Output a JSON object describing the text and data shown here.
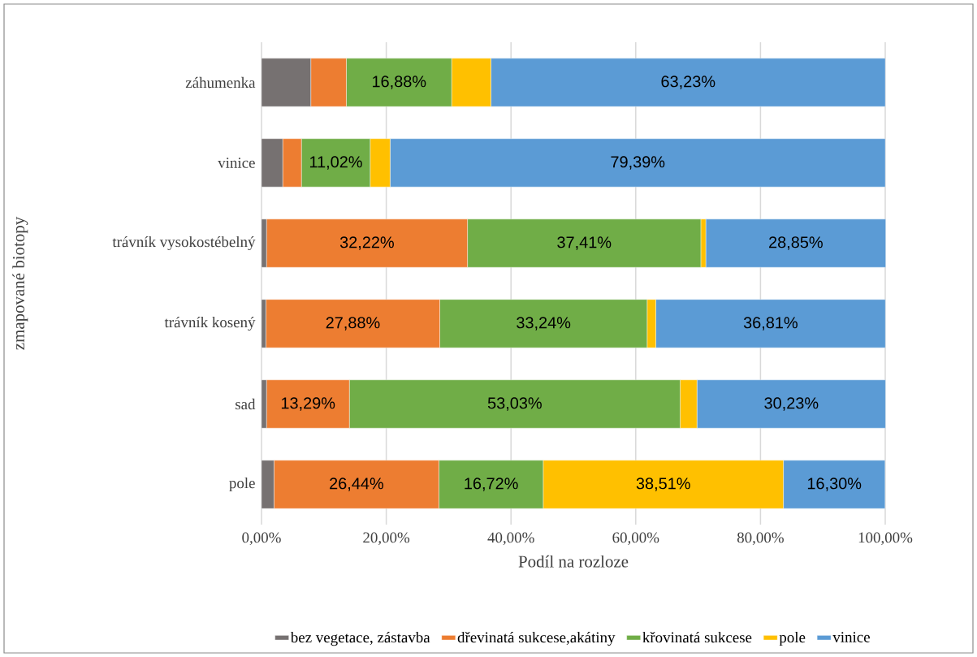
{
  "chart_data": {
    "type": "bar",
    "orientation": "horizontal",
    "stacked": true,
    "xlabel": "Podíl na rozloze",
    "ylabel": "zmapované biotopy",
    "categories": [
      "záhumenka",
      "vinice",
      "trávník vysokostébelný",
      "trávník kosený",
      "sad",
      "pole"
    ],
    "series": [
      {
        "name": "bez vegetace, zástavba",
        "color": "#767171",
        "values": [
          7.9,
          3.4,
          0.8,
          0.7,
          0.8,
          2.0
        ]
      },
      {
        "name": "dřevinatá sukcese,akátiny",
        "color": "#ED7D31",
        "values": [
          5.7,
          3.0,
          32.22,
          27.88,
          13.29,
          26.44
        ],
        "value_labels": [
          null,
          null,
          "32,22%",
          "27,88%",
          "13,29%",
          "26,44%"
        ]
      },
      {
        "name": "křovinatá sukcese",
        "color": "#70AD47",
        "values": [
          16.88,
          11.02,
          37.41,
          33.24,
          53.03,
          16.72
        ],
        "value_labels": [
          "16,88%",
          "11,02%",
          "37,41%",
          "33,24%",
          "53,03%",
          "16,72%"
        ]
      },
      {
        "name": "pole",
        "color": "#FFC000",
        "values": [
          6.3,
          3.2,
          0.8,
          1.4,
          2.7,
          38.51
        ],
        "value_labels": [
          null,
          null,
          null,
          null,
          null,
          "38,51%"
        ]
      },
      {
        "name": "vinice",
        "color": "#5B9BD5",
        "values": [
          63.23,
          79.39,
          28.85,
          36.81,
          30.23,
          16.3
        ],
        "value_labels": [
          "63,23%",
          "79,39%",
          "28,85%",
          "36,81%",
          "30,23%",
          "16,30%"
        ]
      }
    ],
    "xlim": [
      0,
      100
    ],
    "xticks": [
      {
        "value": 0,
        "label": "0,00%"
      },
      {
        "value": 20,
        "label": "20,00%"
      },
      {
        "value": 40,
        "label": "40,00%"
      },
      {
        "value": 60,
        "label": "60,00%"
      },
      {
        "value": 80,
        "label": "80,00%"
      },
      {
        "value": 100,
        "label": "100,00%"
      }
    ],
    "grid": "x",
    "legend": "bottom"
  }
}
